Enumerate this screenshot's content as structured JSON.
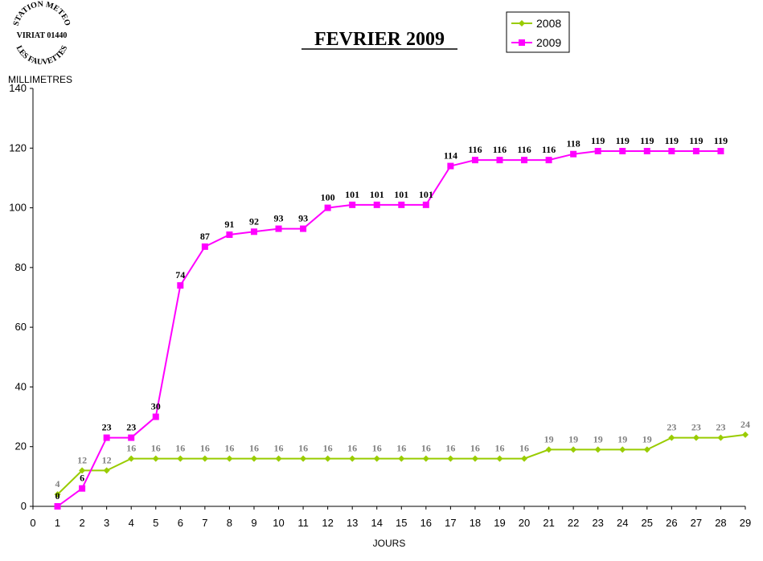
{
  "stamp": {
    "line1": "STATION METEO",
    "line2": "VIRIAT 01440",
    "line3": "LES FAUVETTES"
  },
  "chart_data": {
    "type": "line",
    "title": "FEVRIER 2009",
    "xlabel": "JOURS",
    "ylabel": "MILLIMETRES",
    "xlim": [
      0,
      29
    ],
    "ylim": [
      0,
      140
    ],
    "yticks": [
      0,
      20,
      40,
      60,
      80,
      100,
      120,
      140
    ],
    "xticks": [
      0,
      1,
      2,
      3,
      4,
      5,
      6,
      7,
      8,
      9,
      10,
      11,
      12,
      13,
      14,
      15,
      16,
      17,
      18,
      19,
      20,
      21,
      22,
      23,
      24,
      25,
      26,
      27,
      28,
      29
    ],
    "grid": false,
    "legend_position": "top-right",
    "series": [
      {
        "name": "2008",
        "color": "#99CC00",
        "label_color": "#808080",
        "marker": "diamond",
        "x": [
          1,
          2,
          3,
          4,
          5,
          6,
          7,
          8,
          9,
          10,
          11,
          12,
          13,
          14,
          15,
          16,
          17,
          18,
          19,
          20,
          21,
          22,
          23,
          24,
          25,
          26,
          27,
          28,
          29
        ],
        "values": [
          4,
          12,
          12,
          16,
          16,
          16,
          16,
          16,
          16,
          16,
          16,
          16,
          16,
          16,
          16,
          16,
          16,
          16,
          16,
          16,
          19,
          19,
          19,
          19,
          19,
          23,
          23,
          23,
          24
        ]
      },
      {
        "name": "2009",
        "color": "#FF00FF",
        "label_color": "#000000",
        "marker": "square",
        "x": [
          1,
          2,
          3,
          4,
          5,
          6,
          7,
          8,
          9,
          10,
          11,
          12,
          13,
          14,
          15,
          16,
          17,
          18,
          19,
          20,
          21,
          22,
          23,
          24,
          25,
          26,
          27,
          28
        ],
        "values": [
          0,
          6,
          23,
          23,
          30,
          74,
          87,
          91,
          92,
          93,
          93,
          100,
          101,
          101,
          101,
          101,
          114,
          116,
          116,
          116,
          116,
          118,
          119,
          119,
          119,
          119,
          119,
          119
        ]
      }
    ]
  }
}
